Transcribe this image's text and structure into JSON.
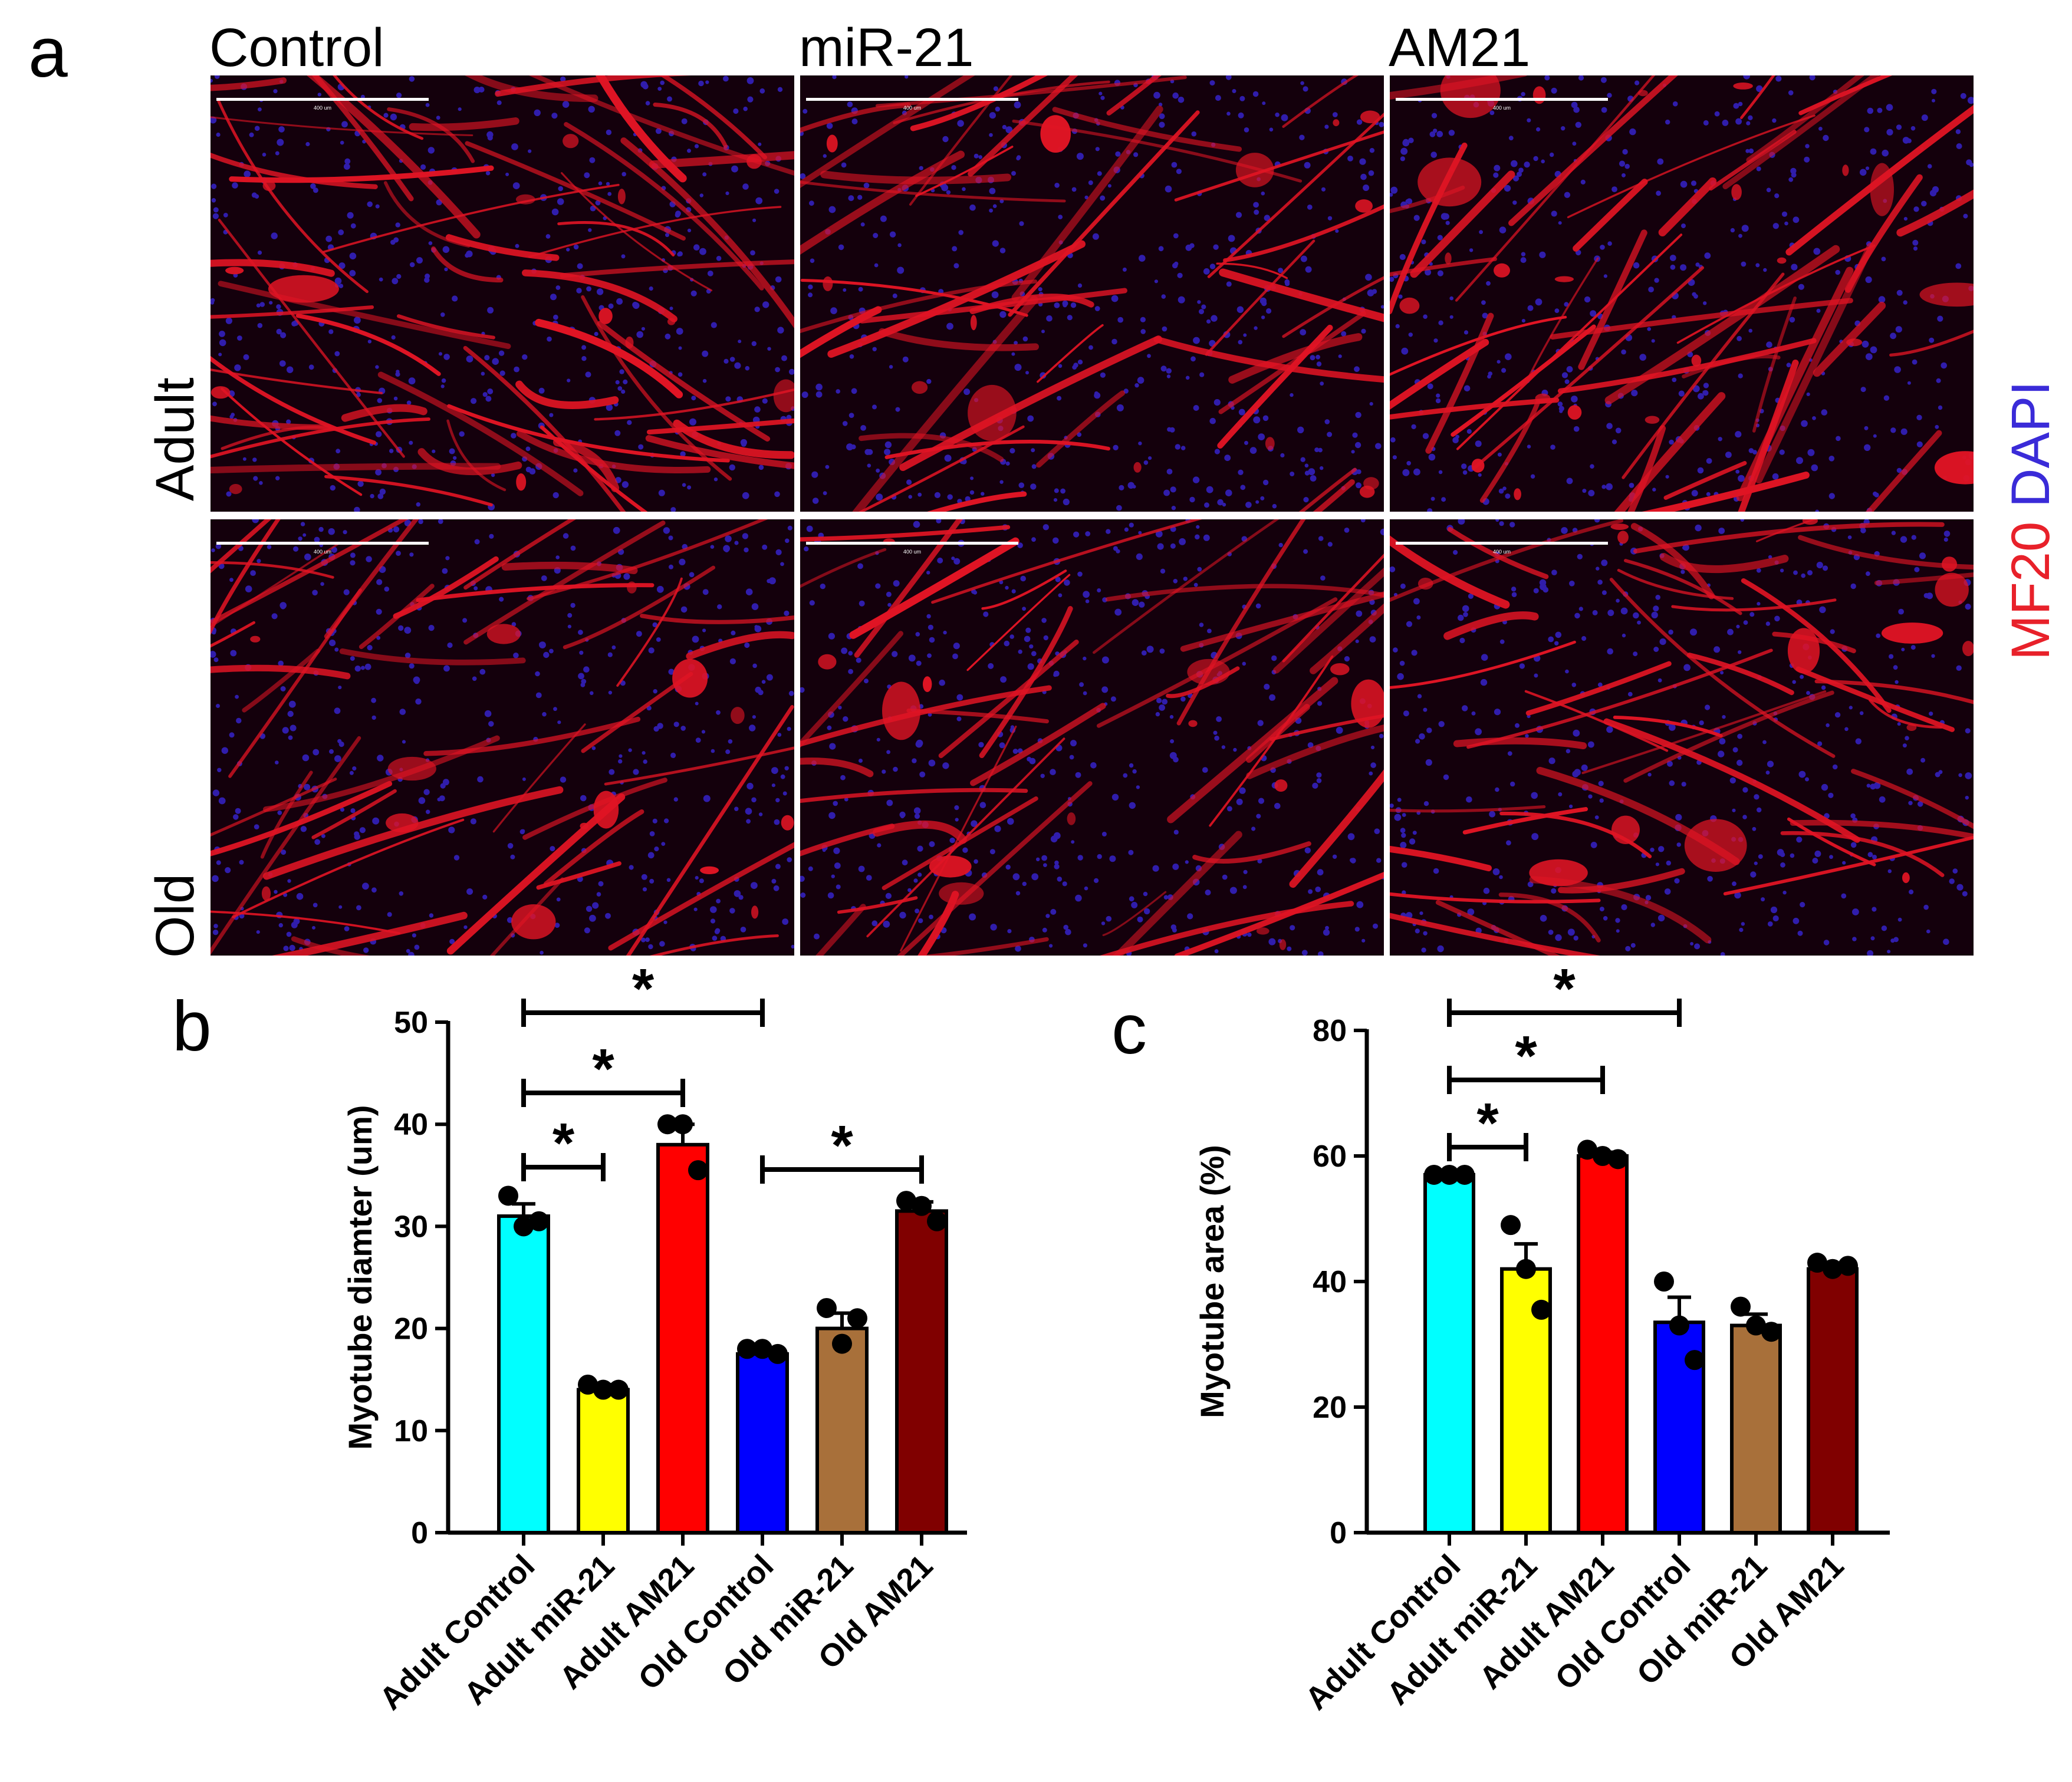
{
  "panel_a": {
    "letter": "a",
    "columns": [
      "Control",
      "miR-21",
      "AM21"
    ],
    "rows": [
      "Adult",
      "Old"
    ],
    "legend": {
      "parts": [
        {
          "text": "MF20",
          "color": "#e8212a"
        },
        {
          "text": "DAPI",
          "color": "#3a2bd8"
        }
      ]
    },
    "scale_bar_label": "400 um",
    "image_colors": {
      "myotube": "#e01424",
      "nuclei": "#3623c8",
      "background": "#14000c"
    }
  },
  "chart_data": [
    {
      "panel": "b",
      "type": "bar",
      "ylabel": "Myotube diamter (um)",
      "ylim": [
        0,
        50
      ],
      "yticks": [
        0,
        10,
        20,
        30,
        40,
        50
      ],
      "categories": [
        "Adult Control",
        "Adult miR-21",
        "Adult AM21",
        "Old Control",
        "Old miR-21",
        "Old AM21"
      ],
      "values": [
        31,
        14,
        38,
        17.5,
        20,
        31.5
      ],
      "sem": [
        1.2,
        0.5,
        2.0,
        0.6,
        1.5,
        0.9
      ],
      "points": [
        [
          33,
          30,
          30.5
        ],
        [
          14.5,
          14,
          14
        ],
        [
          40,
          40,
          35.5
        ],
        [
          18,
          18,
          17.5
        ],
        [
          22,
          18.5,
          21
        ],
        [
          32.5,
          32,
          30.5
        ]
      ],
      "colors": [
        "#00ffff",
        "#ffff00",
        "#ff0000",
        "#0000ff",
        "#a8703a",
        "#800000"
      ],
      "significance": [
        {
          "from": 0,
          "to": 3,
          "label": "*"
        },
        {
          "from": 0,
          "to": 2,
          "label": "*"
        },
        {
          "from": 0,
          "to": 1,
          "label": "*"
        },
        {
          "from": 3,
          "to": 5,
          "label": "*"
        }
      ]
    },
    {
      "panel": "c",
      "type": "bar",
      "ylabel": "Myotube area (%)",
      "ylim": [
        0,
        80
      ],
      "yticks": [
        0,
        20,
        40,
        60,
        80
      ],
      "categories": [
        "Adult Control",
        "Adult miR-21",
        "Adult AM21",
        "Old Control",
        "Old miR-21",
        "Old AM21"
      ],
      "values": [
        57,
        42,
        60,
        33.5,
        33,
        42
      ],
      "sem": [
        0.3,
        4.0,
        0.6,
        4.0,
        1.8,
        0.5
      ],
      "points": [
        [
          57,
          57,
          57
        ],
        [
          49,
          42,
          35.5
        ],
        [
          61,
          60,
          59.5
        ],
        [
          40,
          33,
          27.5
        ],
        [
          36,
          33,
          32
        ],
        [
          43,
          42,
          42.5
        ]
      ],
      "colors": [
        "#00ffff",
        "#ffff00",
        "#ff0000",
        "#0000ff",
        "#a8703a",
        "#800000"
      ],
      "significance": [
        {
          "from": 0,
          "to": 3,
          "label": "*"
        },
        {
          "from": 0,
          "to": 2,
          "label": "*"
        },
        {
          "from": 0,
          "to": 1,
          "label": "*"
        }
      ]
    }
  ]
}
